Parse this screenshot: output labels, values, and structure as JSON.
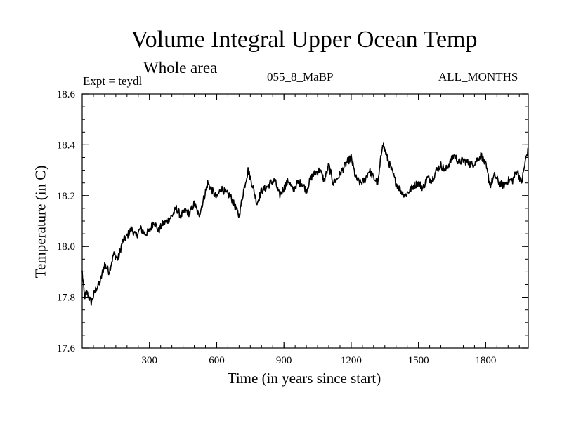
{
  "chart_data": {
    "type": "line",
    "title": "Volume Integral Upper Ocean Temp",
    "subtitle": "Whole area",
    "annotations": {
      "expt": "Expt = teydl",
      "case": "055_8_MaBP",
      "months": "ALL_MONTHS"
    },
    "xlabel": "Time (in years since start)",
    "ylabel": "Temperature (in C)",
    "xlim": [
      0,
      1990
    ],
    "ylim": [
      17.6,
      18.6
    ],
    "x_ticks": [
      300,
      600,
      900,
      1200,
      1500,
      1800
    ],
    "x_tick_labels": [
      "300",
      "600",
      "900",
      "1200",
      "1500",
      "1800"
    ],
    "y_ticks": [
      17.6,
      17.8,
      18.0,
      18.2,
      18.4,
      18.6
    ],
    "y_tick_labels": [
      "17.6",
      "17.8",
      "18.0",
      "18.2",
      "18.4",
      "18.6"
    ],
    "series": [
      {
        "name": "teydl",
        "x": [
          0,
          10,
          20,
          40,
          60,
          80,
          100,
          120,
          140,
          160,
          180,
          200,
          220,
          240,
          260,
          280,
          300,
          320,
          340,
          360,
          380,
          400,
          420,
          440,
          460,
          480,
          500,
          520,
          540,
          560,
          580,
          600,
          620,
          640,
          660,
          680,
          700,
          720,
          740,
          760,
          780,
          800,
          820,
          840,
          860,
          880,
          900,
          920,
          940,
          960,
          980,
          1000,
          1020,
          1040,
          1060,
          1080,
          1100,
          1120,
          1140,
          1160,
          1180,
          1200,
          1220,
          1240,
          1260,
          1280,
          1300,
          1320,
          1340,
          1360,
          1380,
          1400,
          1420,
          1440,
          1460,
          1480,
          1500,
          1520,
          1540,
          1560,
          1580,
          1600,
          1620,
          1640,
          1660,
          1680,
          1700,
          1720,
          1740,
          1760,
          1780,
          1800,
          1820,
          1840,
          1860,
          1880,
          1900,
          1920,
          1940,
          1960,
          1980,
          1990
        ],
        "values": [
          17.9,
          17.8,
          17.82,
          17.78,
          17.83,
          17.86,
          17.93,
          17.9,
          17.97,
          17.95,
          18.02,
          18.04,
          18.07,
          18.04,
          18.07,
          18.05,
          18.06,
          18.1,
          18.06,
          18.09,
          18.1,
          18.12,
          18.15,
          18.12,
          18.14,
          18.13,
          18.17,
          18.12,
          18.18,
          18.25,
          18.22,
          18.19,
          18.23,
          18.21,
          18.2,
          18.16,
          18.12,
          18.22,
          18.3,
          18.24,
          18.17,
          18.22,
          18.23,
          18.25,
          18.26,
          18.2,
          18.23,
          18.26,
          18.22,
          18.25,
          18.25,
          18.22,
          18.27,
          18.29,
          18.3,
          18.26,
          18.32,
          18.25,
          18.27,
          18.3,
          18.33,
          18.35,
          18.27,
          18.25,
          18.26,
          18.3,
          18.27,
          18.25,
          18.41,
          18.35,
          18.3,
          18.25,
          18.22,
          18.2,
          18.22,
          18.24,
          18.25,
          18.23,
          18.27,
          18.26,
          18.3,
          18.32,
          18.3,
          18.33,
          18.36,
          18.33,
          18.34,
          18.33,
          18.32,
          18.34,
          18.36,
          18.32,
          18.24,
          18.28,
          18.25,
          18.24,
          18.26,
          18.26,
          18.3,
          18.25,
          18.35,
          18.38
        ]
      }
    ]
  }
}
